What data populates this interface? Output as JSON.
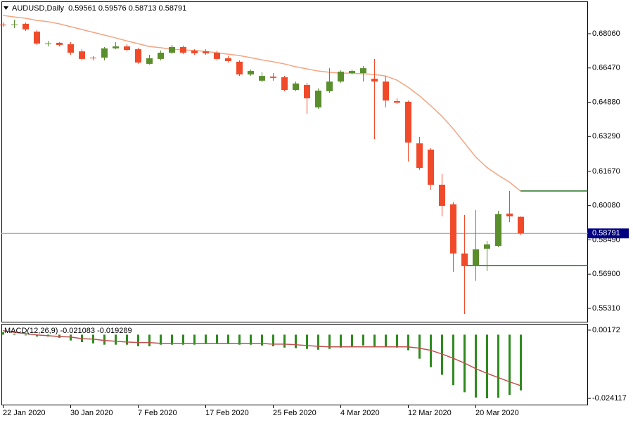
{
  "chart_data": [
    {
      "type": "candlestick",
      "title": "AUDUSD,Daily  0.59561 0.59576 0.58713 0.58791",
      "categories": [
        "22 Jan 2020",
        null,
        null,
        null,
        null,
        null,
        "30 Jan 2020",
        null,
        null,
        null,
        null,
        null,
        "7 Feb 2020",
        null,
        null,
        null,
        null,
        null,
        "17 Feb 2020",
        null,
        null,
        null,
        null,
        null,
        "25 Feb 2020",
        null,
        null,
        null,
        null,
        null,
        "4 Mar 2020",
        null,
        null,
        null,
        null,
        null,
        "12 Mar 2020",
        null,
        null,
        null,
        null,
        null,
        "20 Mar 2020",
        null,
        null,
        null,
        null
      ],
      "open": [
        0.6848,
        0.6848,
        0.6852,
        0.6816,
        0.676,
        0.6764,
        0.6757,
        0.6724,
        0.6695,
        0.6695,
        0.6738,
        0.6747,
        0.6734,
        0.6666,
        0.6689,
        0.6718,
        0.6744,
        0.6728,
        0.6724,
        0.6718,
        0.6692,
        0.6676,
        0.6617,
        0.6588,
        0.6607,
        0.6604,
        0.6545,
        0.6568,
        0.6464,
        0.6539,
        0.6584,
        0.6623,
        0.6623,
        0.6597,
        0.6584,
        0.6493,
        0.649,
        0.6297,
        0.6268,
        0.6105,
        0.6014,
        0.5786,
        0.573,
        0.5808,
        0.5821,
        0.5971,
        0.59561
      ],
      "high": [
        0.6858,
        0.6871,
        0.6858,
        0.6822,
        0.6773,
        0.6767,
        0.6767,
        0.6734,
        0.6702,
        0.6744,
        0.6767,
        0.6757,
        0.6741,
        0.6708,
        0.6728,
        0.6754,
        0.6751,
        0.6734,
        0.6734,
        0.6728,
        0.6702,
        0.6682,
        0.664,
        0.6627,
        0.6623,
        0.661,
        0.6584,
        0.6578,
        0.6552,
        0.6646,
        0.6636,
        0.664,
        0.6656,
        0.6689,
        0.661,
        0.6506,
        0.6496,
        0.6327,
        0.6275,
        0.6154,
        0.6024,
        0.5965,
        0.5988,
        0.5844,
        0.5984,
        0.6076,
        0.59576
      ],
      "low": [
        0.6839,
        0.6832,
        0.6819,
        0.6754,
        0.6747,
        0.6747,
        0.6708,
        0.6682,
        0.6682,
        0.6682,
        0.6734,
        0.6724,
        0.6666,
        0.6663,
        0.6682,
        0.6711,
        0.6711,
        0.6708,
        0.6708,
        0.6682,
        0.6672,
        0.661,
        0.661,
        0.6581,
        0.6588,
        0.6539,
        0.6539,
        0.6434,
        0.6457,
        0.6532,
        0.6578,
        0.6617,
        0.6584,
        0.6317,
        0.6464,
        0.648,
        0.6213,
        0.6174,
        0.6082,
        0.5958,
        0.5701,
        0.5505,
        0.5659,
        0.5704,
        0.5815,
        0.5932,
        0.58713
      ],
      "close": [
        0.6847,
        0.6849,
        0.6826,
        0.676,
        0.6761,
        0.6754,
        0.6718,
        0.6689,
        0.6692,
        0.6738,
        0.6747,
        0.6731,
        0.6672,
        0.6692,
        0.6718,
        0.6744,
        0.6718,
        0.6715,
        0.6715,
        0.6689,
        0.6679,
        0.6617,
        0.6633,
        0.661,
        0.6601,
        0.6545,
        0.6575,
        0.6506,
        0.6542,
        0.6584,
        0.663,
        0.6633,
        0.6646,
        0.6584,
        0.6496,
        0.6486,
        0.6301,
        0.6183,
        0.6105,
        0.6007,
        0.5786,
        0.5727,
        0.5805,
        0.5828,
        0.5968,
        0.5958,
        0.58791
      ],
      "up_color": "#5a8e2c",
      "down_color": "#f04a2a",
      "ma": {
        "color": "#f4a582",
        "values": [
          0.6891,
          0.6884,
          0.6878,
          0.6868,
          0.6862,
          0.6852,
          0.6839,
          0.6826,
          0.6813,
          0.68,
          0.6787,
          0.6773,
          0.676,
          0.6747,
          0.6741,
          0.6734,
          0.6731,
          0.6728,
          0.6724,
          0.6718,
          0.6711,
          0.6705,
          0.6695,
          0.6685,
          0.6676,
          0.6666,
          0.6653,
          0.6643,
          0.6633,
          0.6627,
          0.6623,
          0.6623,
          0.662,
          0.6617,
          0.661,
          0.6591,
          0.6558,
          0.6519,
          0.6473,
          0.6424,
          0.6366,
          0.6301,
          0.6235,
          0.6186,
          0.615,
          0.6118,
          0.6076
        ]
      },
      "hlines": [
        {
          "value": 0.6076,
          "start": 46,
          "color": "#1f6e1f"
        },
        {
          "value": 0.573,
          "start": 41,
          "color": "#1f6e1f"
        }
      ],
      "price_line": {
        "value": 0.58791,
        "label": "0.58791",
        "color": "#8a9a8a",
        "box_color": "#000080"
      },
      "ylim": [
        0.5469,
        0.6956
      ],
      "yticks": [
        {
          "value": 0.6806,
          "label": "0.68060"
        },
        {
          "value": 0.6647,
          "label": "0.66470"
        },
        {
          "value": 0.6488,
          "label": "0.64880"
        },
        {
          "value": 0.6329,
          "label": "0.63290"
        },
        {
          "value": 0.6167,
          "label": "0.61670"
        },
        {
          "value": 0.6008,
          "label": "0.60080"
        },
        {
          "value": 0.5849,
          "label": "0.58490"
        },
        {
          "value": 0.569,
          "label": "0.56900"
        },
        {
          "value": 0.5531,
          "label": "0.55310"
        }
      ],
      "grid": false
    },
    {
      "type": "macd",
      "title": "MACD(12,26,9) -0.021083 -0.019289",
      "series": [
        {
          "style": "histogram",
          "color": "#2e8b1e",
          "values": [
            0.0009,
            0.0004,
            -0.0001,
            -0.0007,
            -0.0007,
            -0.0012,
            -0.0022,
            -0.0028,
            -0.0033,
            -0.0038,
            -0.0038,
            -0.0038,
            -0.0044,
            -0.0044,
            -0.0038,
            -0.0038,
            -0.0038,
            -0.0038,
            -0.0036,
            -0.0036,
            -0.0036,
            -0.0038,
            -0.0038,
            -0.0041,
            -0.0044,
            -0.0049,
            -0.0051,
            -0.0054,
            -0.0057,
            -0.0054,
            -0.0049,
            -0.0044,
            -0.0041,
            -0.0044,
            -0.0044,
            -0.0049,
            -0.0059,
            -0.0091,
            -0.0123,
            -0.0152,
            -0.0191,
            -0.0218,
            -0.0238,
            -0.0241,
            -0.0239,
            -0.0228,
            -0.021083
          ]
        },
        {
          "style": "line",
          "color": "#c0504d",
          "values": [
            0.0015,
            0.0009,
            0.0004,
            -0.0001,
            -0.0004,
            -0.0007,
            -0.0009,
            -0.0015,
            -0.0017,
            -0.0022,
            -0.0025,
            -0.0028,
            -0.003,
            -0.003,
            -0.0033,
            -0.0033,
            -0.0033,
            -0.0033,
            -0.0033,
            -0.0033,
            -0.0033,
            -0.0033,
            -0.0033,
            -0.0033,
            -0.0036,
            -0.0036,
            -0.0038,
            -0.0041,
            -0.0044,
            -0.0046,
            -0.0046,
            -0.0046,
            -0.0046,
            -0.0046,
            -0.0046,
            -0.0046,
            -0.0046,
            -0.0051,
            -0.0059,
            -0.0073,
            -0.0089,
            -0.0107,
            -0.0128,
            -0.0146,
            -0.0162,
            -0.0178,
            -0.019289
          ]
        }
      ],
      "ylim": [
        -0.02649,
        0.00383
      ],
      "yticks": [
        0.00172,
        -0.024117
      ]
    }
  ]
}
